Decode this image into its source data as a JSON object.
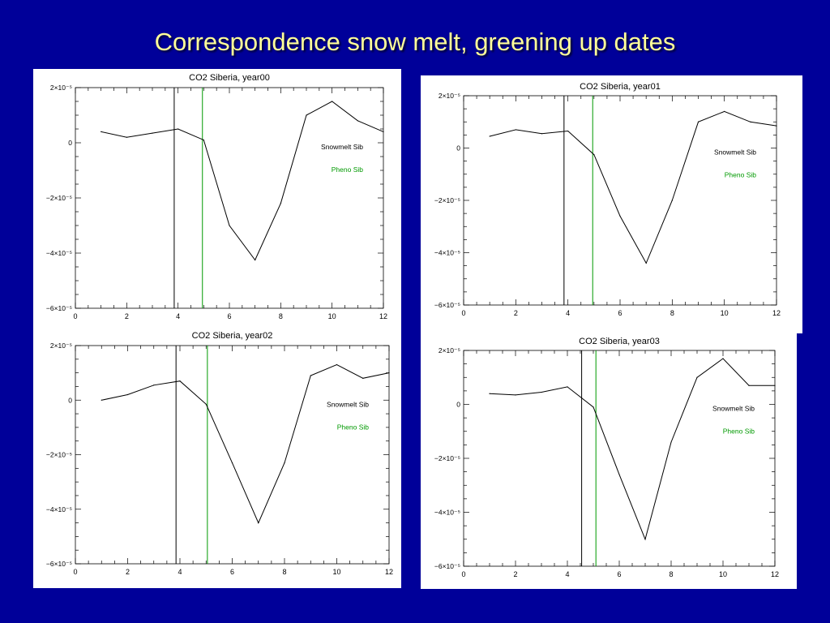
{
  "slide": {
    "title": "Correspondence snow melt, greening up dates"
  },
  "colors": {
    "background": "#000099",
    "title": "#ffff99",
    "snowmelt": "#000000",
    "pheno": "#009900"
  },
  "chart_data": [
    {
      "type": "line",
      "title": "CO2 Siberia, year00",
      "xlim": [
        0,
        12
      ],
      "ylim": [
        -6e-05,
        2e-05
      ],
      "x_ticks": [
        "0",
        "2",
        "4",
        "6",
        "8",
        "10",
        "12"
      ],
      "y_ticks": [
        "2×10⁻⁵",
        "0",
        "−2×10⁻⁵",
        "−4×10⁻⁵",
        "−6×10⁻⁵"
      ],
      "x": [
        1,
        2,
        3,
        4,
        5,
        6,
        7,
        8,
        9,
        10,
        11,
        12
      ],
      "values": [
        4e-06,
        2e-06,
        3.5e-06,
        5e-06,
        1e-06,
        -3e-05,
        -4.25e-05,
        -2.2e-05,
        1e-05,
        1.5e-05,
        8e-06,
        4e-06
      ],
      "snowmelt_x": 3.85,
      "pheno_x": 4.95,
      "legend": [
        {
          "label": "Snowmelt Sib",
          "color": "#000000"
        },
        {
          "label": "Pheno Sib",
          "color": "#009900"
        }
      ]
    },
    {
      "type": "line",
      "title": "CO2 Siberia, year01",
      "xlim": [
        0,
        12
      ],
      "ylim": [
        -6e-05,
        2e-05
      ],
      "x_ticks": [
        "0",
        "2",
        "4",
        "6",
        "8",
        "10",
        "12"
      ],
      "y_ticks": [
        "2×10⁻⁵",
        "0",
        "−2×10⁻⁵",
        "−4×10⁻⁵",
        "−6×10⁻⁵"
      ],
      "x": [
        1,
        2,
        3,
        4,
        5,
        6,
        7,
        8,
        9,
        10,
        11,
        12
      ],
      "values": [
        4.5e-06,
        7e-06,
        5.5e-06,
        6.5e-06,
        -2.5e-06,
        -2.6e-05,
        -4.4e-05,
        -2e-05,
        1e-05,
        1.4e-05,
        1e-05,
        8.5e-06
      ],
      "snowmelt_x": 3.85,
      "pheno_x": 4.95,
      "legend": [
        {
          "label": "Snowmelt Sib",
          "color": "#000000"
        },
        {
          "label": "Pheno Sib",
          "color": "#009900"
        }
      ]
    },
    {
      "type": "line",
      "title": "CO2 Siberia, year02",
      "xlim": [
        0,
        12
      ],
      "ylim": [
        -6e-05,
        2e-05
      ],
      "x_ticks": [
        "0",
        "2",
        "4",
        "6",
        "8",
        "10",
        "12"
      ],
      "y_ticks": [
        "2×10⁻⁵",
        "0",
        "−2×10⁻⁵",
        "−4×10⁻⁵",
        "−6×10⁻⁵"
      ],
      "x": [
        1,
        2,
        3,
        4,
        5,
        6,
        7,
        8,
        9,
        10,
        11,
        12
      ],
      "values": [
        0,
        2e-06,
        5.5e-06,
        7e-06,
        -1.5e-06,
        -2.3e-05,
        -4.5e-05,
        -2.3e-05,
        9e-06,
        1.3e-05,
        8e-06,
        1e-05
      ],
      "snowmelt_x": 3.85,
      "pheno_x": 5.05,
      "legend": [
        {
          "label": "Snowmelt Sib",
          "color": "#000000"
        },
        {
          "label": "Pheno Sib",
          "color": "#009900"
        }
      ]
    },
    {
      "type": "line",
      "title": "CO2 Siberia, year03",
      "xlim": [
        0,
        12
      ],
      "ylim": [
        -6e-05,
        2e-05
      ],
      "x_ticks": [
        "0",
        "2",
        "4",
        "6",
        "8",
        "10",
        "12"
      ],
      "y_ticks": [
        "2×10⁻⁵",
        "0",
        "−2×10⁻⁵",
        "−4×10⁻⁵",
        "−6×10⁻⁵"
      ],
      "x": [
        1,
        2,
        3,
        4,
        5,
        6,
        7,
        8,
        9,
        10,
        11,
        12
      ],
      "values": [
        4e-06,
        3.5e-06,
        4.5e-06,
        6.5e-06,
        -1e-06,
        -2.6e-05,
        -5e-05,
        -1.4e-05,
        1e-05,
        1.7e-05,
        7e-06,
        7e-06
      ],
      "snowmelt_x": 4.55,
      "pheno_x": 5.1,
      "legend": [
        {
          "label": "Snowmelt Sib",
          "color": "#000000"
        },
        {
          "label": "Pheno Sib",
          "color": "#009900"
        }
      ]
    }
  ]
}
